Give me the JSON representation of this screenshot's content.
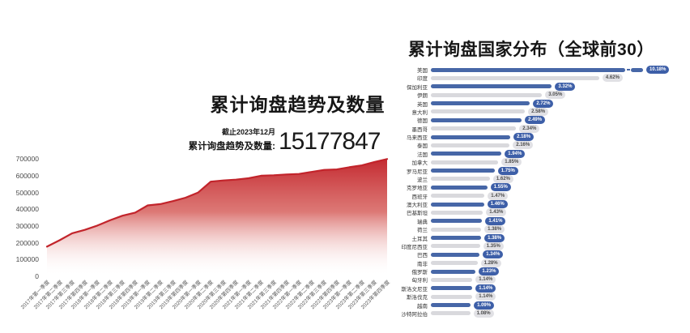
{
  "chart_data": [
    {
      "type": "area",
      "title": "累计询盘趋势及数量",
      "annotation": "截止2023年12月",
      "total_label": "累计询盘趋势及数量:",
      "total_value": "15177847",
      "color": "#c2242b",
      "ylim": [
        0,
        740000
      ],
      "yticks": [
        700000,
        600000,
        500000,
        400000,
        300000,
        200000,
        100000,
        0
      ],
      "grid": false,
      "x": [
        "2017年第一季度",
        "2017年第二季度",
        "2017年第三季度",
        "2017年第四季度",
        "2018年第一季度",
        "2018年第二季度",
        "2018年第三季度",
        "2018年第四季度",
        "2019年第一季度",
        "2019年第二季度",
        "2019年第三季度",
        "2019年第四季度",
        "2020年第一季度",
        "2020年第二季度",
        "2020年第三季度",
        "2020年第四季度",
        "2021年第一季度",
        "2021年第二季度",
        "2021年第三季度",
        "2021年第四季度",
        "2022年第一季度",
        "2022年第二季度",
        "2022年第三季度",
        "2022年第四季度",
        "2023年第一季度",
        "2023年第二季度",
        "2023年第三季度",
        "2023年第四季度"
      ],
      "values": [
        177000,
        215000,
        257000,
        277000,
        303000,
        334000,
        362000,
        380000,
        423000,
        431000,
        449000,
        469000,
        500000,
        565000,
        572000,
        577000,
        585000,
        600000,
        603000,
        608000,
        611000,
        623000,
        635000,
        638000,
        651000,
        662000,
        682000,
        700000
      ]
    },
    {
      "type": "bar",
      "orientation": "horizontal",
      "title": "累计询盘国家分布（全球前30）",
      "legend": "none",
      "bar_color_odd": "#4767a7",
      "bar_color_even": "#d9d9dd",
      "badge_color_blue": "#3d5fa8",
      "badge_color_gray": "#e1e1e5",
      "axis_break_row": 0,
      "categories": [
        "美国",
        "印度",
        "保加利亚",
        "伊朗",
        "英国",
        "意大利",
        "德国",
        "墨西哥",
        "马来西亚",
        "泰国",
        "法国",
        "加拿大",
        "罗马尼亚",
        "波兰",
        "克罗地亚",
        "西班牙",
        "澳大利亚",
        "巴基斯坦",
        "瑞典",
        "荷兰",
        "土耳其",
        "印度尼西亚",
        "巴西",
        "南非",
        "俄罗斯",
        "匈牙利",
        "斯洛文尼亚",
        "斯洛伐克",
        "越南",
        "沙特阿拉伯"
      ],
      "values": [
        10.18,
        4.62,
        3.32,
        3.05,
        2.72,
        2.58,
        2.49,
        2.34,
        2.18,
        2.16,
        1.94,
        1.85,
        1.75,
        1.62,
        1.55,
        1.47,
        1.46,
        1.43,
        1.41,
        1.38,
        1.38,
        1.35,
        1.34,
        1.28,
        1.23,
        1.14,
        1.14,
        1.14,
        1.09,
        1.08
      ],
      "labels": [
        "10.18%",
        "4.62%",
        "3.32%",
        "3.05%",
        "2.72%",
        "2.58%",
        "2.49%",
        "2.34%",
        "2.18%",
        "2.16%",
        "1.94%",
        "1.85%",
        "1.75%",
        "1.62%",
        "1.55%",
        "1.47%",
        "1.46%",
        "1.43%",
        "1.41%",
        "1.38%",
        "1.38%",
        "1.35%",
        "1.34%",
        "1.28%",
        "1.23%",
        "1.14%",
        "1.14%",
        "1.14%",
        "1.09%",
        "1.08%"
      ]
    }
  ]
}
